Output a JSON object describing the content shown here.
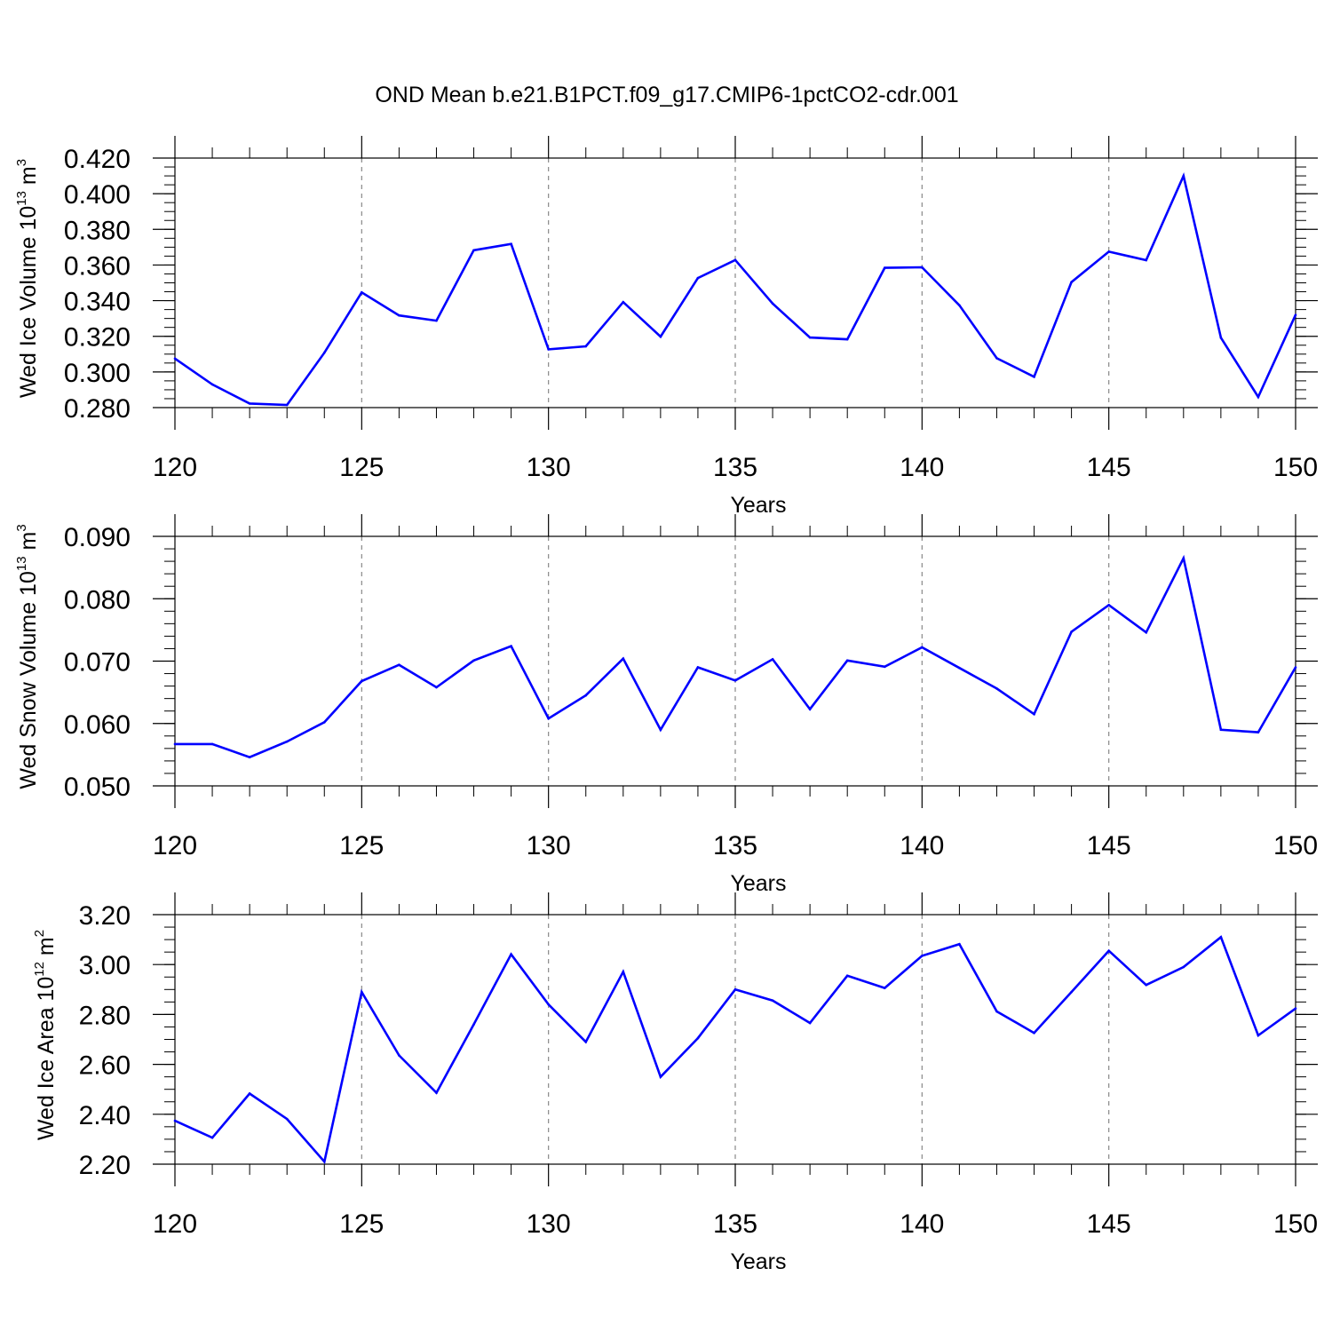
{
  "figure": {
    "title": "OND Mean b.e21.B1PCT.f09_g17.CMIP6-1pctCO2-cdr.001",
    "line_color": "#0000ff",
    "grid_color": "#888888"
  },
  "chart_data": [
    {
      "type": "line",
      "name": "Wed Ice Volume",
      "ylabel": {
        "main": "Wed Ice Volume 10",
        "sup1": "13",
        "unit": " m",
        "sup2": "3"
      },
      "xlabel": "Years",
      "xlim": [
        120,
        150
      ],
      "ylim": [
        0.28,
        0.42
      ],
      "xticks": [
        120,
        125,
        130,
        135,
        140,
        145,
        150
      ],
      "xtick_labels": [
        "120",
        "125",
        "130",
        "135",
        "140",
        "145",
        "150"
      ],
      "yticks": [
        0.28,
        0.3,
        0.32,
        0.34,
        0.36,
        0.38,
        0.4,
        0.42
      ],
      "ytick_labels": [
        "0.280",
        "0.300",
        "0.320",
        "0.340",
        "0.360",
        "0.380",
        "0.400",
        "0.420"
      ],
      "y_minor_step": 0.005,
      "grid": "vertical dashed at major x ticks",
      "x": [
        120,
        121,
        122,
        123,
        124,
        125,
        126,
        127,
        128,
        129,
        130,
        131,
        132,
        133,
        134,
        135,
        136,
        137,
        138,
        139,
        140,
        141,
        142,
        143,
        144,
        145,
        146,
        147,
        148,
        149,
        150
      ],
      "y": [
        0.3075,
        0.293,
        0.2823,
        0.2815,
        0.3108,
        0.3446,
        0.3317,
        0.3288,
        0.3683,
        0.3718,
        0.3127,
        0.3144,
        0.3392,
        0.3198,
        0.3527,
        0.3628,
        0.3384,
        0.3193,
        0.3183,
        0.3584,
        0.3587,
        0.3374,
        0.3077,
        0.2973,
        0.3504,
        0.3675,
        0.3627,
        0.41,
        0.3192,
        0.286,
        0.332
      ]
    },
    {
      "type": "line",
      "name": "Wed Snow Volume",
      "ylabel": {
        "main": "Wed Snow Volume 10",
        "sup1": "13",
        "unit": " m",
        "sup2": "3"
      },
      "xlabel": "Years",
      "xlim": [
        120,
        150
      ],
      "ylim": [
        0.05,
        0.09
      ],
      "xticks": [
        120,
        125,
        130,
        135,
        140,
        145,
        150
      ],
      "xtick_labels": [
        "120",
        "125",
        "130",
        "135",
        "140",
        "145",
        "150"
      ],
      "yticks": [
        0.05,
        0.06,
        0.07,
        0.08,
        0.09
      ],
      "ytick_labels": [
        "0.050",
        "0.060",
        "0.070",
        "0.080",
        "0.090"
      ],
      "y_minor_step": 0.002,
      "grid": "vertical dashed at major x ticks",
      "x": [
        120,
        121,
        122,
        123,
        124,
        125,
        126,
        127,
        128,
        129,
        130,
        131,
        132,
        133,
        134,
        135,
        136,
        137,
        138,
        139,
        140,
        141,
        142,
        143,
        144,
        145,
        146,
        147,
        148,
        149,
        150
      ],
      "y": [
        0.0567,
        0.0567,
        0.0546,
        0.0571,
        0.0602,
        0.0668,
        0.0694,
        0.0658,
        0.0701,
        0.0724,
        0.0608,
        0.0645,
        0.0704,
        0.059,
        0.069,
        0.0669,
        0.0703,
        0.0623,
        0.0701,
        0.0691,
        0.0722,
        0.0689,
        0.0656,
        0.0615,
        0.0747,
        0.079,
        0.0746,
        0.0865,
        0.059,
        0.0586,
        0.069
      ]
    },
    {
      "type": "line",
      "name": "Wed Ice Area",
      "ylabel": {
        "main": "Wed Ice Area 10",
        "sup1": "12",
        "unit": " m",
        "sup2": "2"
      },
      "xlabel": "Years",
      "xlim": [
        120,
        150
      ],
      "ylim": [
        2.2,
        3.2
      ],
      "xticks": [
        120,
        125,
        130,
        135,
        140,
        145,
        150
      ],
      "xtick_labels": [
        "120",
        "125",
        "130",
        "135",
        "140",
        "145",
        "150"
      ],
      "yticks": [
        2.2,
        2.4,
        2.6,
        2.8,
        3.0,
        3.2
      ],
      "ytick_labels": [
        "2.20",
        "2.40",
        "2.60",
        "2.80",
        "3.00",
        "3.20"
      ],
      "y_minor_step": 0.05,
      "grid": "vertical dashed at major x ticks",
      "x": [
        120,
        121,
        122,
        123,
        124,
        125,
        126,
        127,
        128,
        129,
        130,
        131,
        132,
        133,
        134,
        135,
        136,
        137,
        138,
        139,
        140,
        141,
        142,
        143,
        144,
        145,
        146,
        147,
        148,
        149,
        150
      ],
      "y": [
        2.374,
        2.306,
        2.483,
        2.381,
        2.21,
        2.89,
        2.636,
        2.486,
        2.76,
        3.041,
        2.84,
        2.69,
        2.971,
        2.55,
        2.705,
        2.9,
        2.856,
        2.766,
        2.955,
        2.906,
        3.035,
        3.082,
        2.812,
        2.726,
        2.89,
        3.055,
        2.918,
        2.99,
        3.11,
        2.716,
        2.824
      ]
    }
  ]
}
